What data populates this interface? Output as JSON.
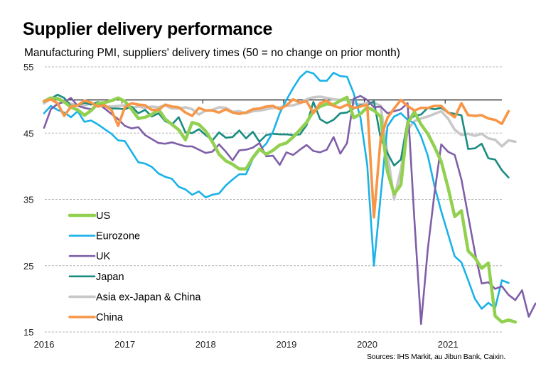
{
  "chart_data": {
    "type": "line",
    "title": "Supplier delivery performance",
    "subtitle": "Manufacturing PMI, suppliers' delivery times (50 = no change on prior month)",
    "source": "Sources: IHS Markit, au Jibun Bank, Caixin.",
    "xlabel": "",
    "ylabel": "",
    "ylim": [
      15,
      55
    ],
    "yticks": [
      15,
      25,
      35,
      45,
      55
    ],
    "ytick_labels": [
      "15",
      "25",
      "35",
      "45",
      "55"
    ],
    "reference_line": 50,
    "xticks": [
      "2016",
      "2017",
      "2018",
      "2019",
      "2020",
      "2021"
    ],
    "x_start": "2016-01",
    "x_frequency": "monthly",
    "grid": true,
    "legend_position": "center-left",
    "series": [
      {
        "name": "US",
        "color": "#92d050",
        "values": [
          49.8,
          50.3,
          50.2,
          49.7,
          48.9,
          48.5,
          47.7,
          48.4,
          49.5,
          49.6,
          49.9,
          50.3,
          49.8,
          48.6,
          47.2,
          47.4,
          47.8,
          48.6,
          47.1,
          46.3,
          45.5,
          44.0,
          46.6,
          46.3,
          45.3,
          43.7,
          41.8,
          40.8,
          40.3,
          39.6,
          39.6,
          41.3,
          42.6,
          41.8,
          42.4,
          43.2,
          43.5,
          44.4,
          45.5,
          46.6,
          48.3,
          49.0,
          49.4,
          49.3,
          49.9,
          50.4,
          47.3,
          47.9,
          48.9,
          48.4,
          47.5,
          39.2,
          35.8,
          37.2,
          46.5,
          48.2,
          46.3,
          44.9,
          42.9,
          40.7,
          36.8,
          32.4,
          33.3,
          27.2,
          26.2,
          24.6,
          25.4,
          17.4,
          16.5,
          16.8,
          16.5
        ]
      },
      {
        "name": "Eurozone",
        "color": "#1ab2e8",
        "values": [
          48.0,
          49.1,
          48.5,
          48.1,
          47.4,
          48.3,
          46.7,
          46.9,
          46.3,
          45.6,
          44.9,
          43.9,
          43.8,
          42.2,
          40.6,
          40.4,
          39.9,
          38.9,
          38.4,
          38.1,
          36.9,
          36.5,
          35.7,
          36.2,
          35.3,
          35.7,
          35.9,
          37.1,
          38.0,
          38.8,
          38.8,
          41.1,
          42.4,
          43.4,
          45.2,
          48.0,
          50.0,
          51.8,
          53.4,
          54.3,
          54.0,
          52.9,
          52.9,
          54.1,
          53.6,
          53.5,
          51.0,
          47.3,
          40.2,
          25.0,
          35.5,
          46.0,
          47.5,
          48.0,
          47.0,
          46.5,
          44.5,
          41.6,
          37.0,
          33.2,
          29.8,
          26.4,
          25.5,
          22.8,
          20.0,
          18.5,
          19.4,
          18.6,
          22.8,
          22.4
        ]
      },
      {
        "name": "UK",
        "color": "#7f5fa8",
        "values": [
          45.8,
          48.6,
          49.4,
          49.7,
          50.3,
          49.1,
          48.8,
          48.6,
          49.5,
          48.7,
          47.9,
          47.1,
          46.1,
          45.7,
          45.9,
          44.7,
          44.1,
          43.5,
          43.4,
          43.6,
          43.3,
          43.0,
          43.0,
          42.5,
          42.0,
          42.2,
          43.3,
          42.2,
          40.9,
          42.4,
          42.5,
          42.8,
          43.5,
          41.5,
          41.6,
          40.2,
          42.1,
          41.7,
          42.5,
          43.2,
          42.3,
          42.1,
          42.5,
          44.4,
          41.9,
          43.5,
          50.2,
          50.6,
          50.0,
          48.9,
          49.0,
          48.0,
          48.3,
          48.6,
          49.5,
          32.0,
          16.2,
          27.5,
          36.0,
          43.3,
          42.2,
          41.7,
          38.0,
          32.5,
          27.0,
          22.3,
          22.5,
          21.5,
          21.9,
          20.6,
          19.8,
          21.3,
          17.3,
          19.3
        ]
      },
      {
        "name": "Japan",
        "color": "#1a8c80",
        "values": [
          49.7,
          50.2,
          50.8,
          50.3,
          49.1,
          49.2,
          49.6,
          49.3,
          49.7,
          49.1,
          48.7,
          48.7,
          48.6,
          49.0,
          48.0,
          48.5,
          47.5,
          48.0,
          46.8,
          46.3,
          47.4,
          45.1,
          45.0,
          45.6,
          44.7,
          43.9,
          45.1,
          44.3,
          44.4,
          45.4,
          44.2,
          45.2,
          43.7,
          44.7,
          44.9,
          44.8,
          44.8,
          44.7,
          44.8,
          46.2,
          49.7,
          47.1,
          46.5,
          47.0,
          48.0,
          48.1,
          48.7,
          49.2,
          49.2,
          49.8,
          44.2,
          42.0,
          40.1,
          41.0,
          46.9,
          47.6,
          47.8,
          48.8,
          48.6,
          48.8,
          48.1,
          47.9,
          47.7,
          42.6,
          42.7,
          43.4,
          41.2,
          41.0,
          39.4,
          38.3
        ]
      },
      {
        "name": "Asia ex-Japan & China",
        "color": "#c8c8c8",
        "values": [
          49.5,
          50.2,
          50.3,
          49.8,
          49.4,
          49.2,
          49.2,
          49.5,
          49.2,
          49.0,
          49.0,
          49.1,
          49.2,
          48.8,
          49.0,
          48.8,
          49.0,
          48.9,
          49.2,
          48.7,
          48.7,
          48.9,
          48.6,
          47.8,
          48.4,
          48.5,
          48.9,
          48.8,
          48.2,
          48.3,
          48.0,
          48.3,
          48.4,
          48.6,
          48.8,
          48.9,
          49.1,
          49.2,
          49.5,
          50.1,
          50.4,
          50.5,
          50.3,
          50.1,
          50.0,
          50.0,
          49.5,
          49.3,
          49.6,
          49.6,
          49.1,
          42.0,
          35.0,
          39.5,
          45.5,
          46.8,
          47.2,
          47.5,
          47.9,
          48.3,
          47.2,
          45.5,
          44.7,
          44.9,
          44.6,
          44.9,
          44.2,
          44.0,
          43.0,
          43.9,
          43.7
        ]
      },
      {
        "name": "China",
        "color": "#f79646",
        "values": [
          49.8,
          50.1,
          49.5,
          47.6,
          49.0,
          49.2,
          49.9,
          49.6,
          49.0,
          49.2,
          48.5,
          46.1,
          48.9,
          49.5,
          49.3,
          49.2,
          48.5,
          48.5,
          49.3,
          49.0,
          48.9,
          48.1,
          47.6,
          48.8,
          48.4,
          48.4,
          48.1,
          48.6,
          48.1,
          47.9,
          48.1,
          48.6,
          48.7,
          49.0,
          49.1,
          48.6,
          49.2,
          50.1,
          49.6,
          49.8,
          48.0,
          49.5,
          49.9,
          49.1,
          48.8,
          49.3,
          48.8,
          49.0,
          49.3,
          32.3,
          44.2,
          47.3,
          48.7,
          50.0,
          49.1,
          48.4,
          48.8,
          48.8,
          49.1,
          49.1,
          48.1,
          47.4,
          49.5,
          47.7,
          47.6,
          47.7,
          47.2,
          47.0,
          46.4,
          48.3
        ]
      }
    ]
  }
}
